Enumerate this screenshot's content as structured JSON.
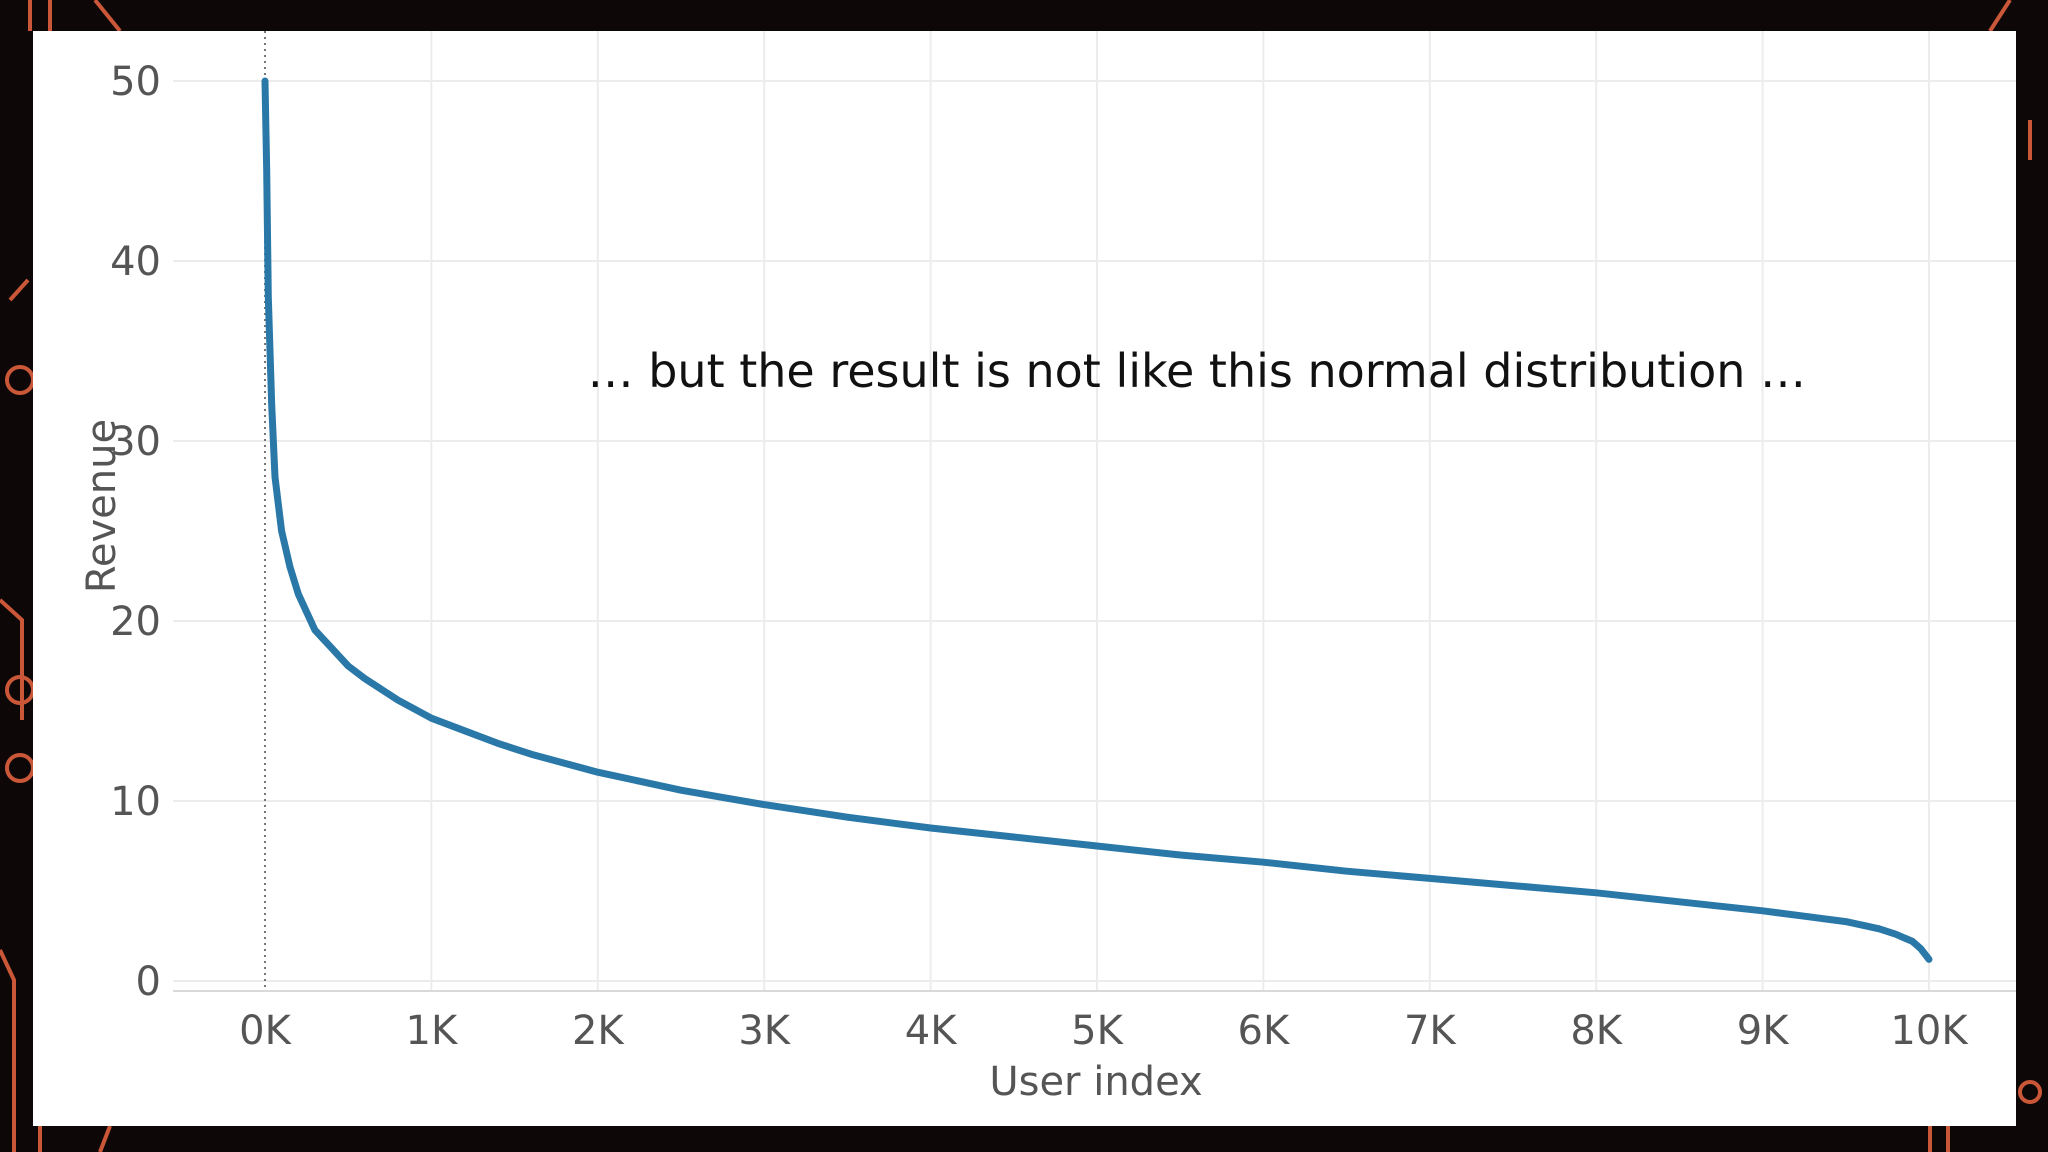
{
  "slide": {
    "theme_colors": {
      "background": "#0d0807",
      "circuit": "#e0603f",
      "panel": "#ffffff"
    }
  },
  "chart_data": {
    "type": "line",
    "title": "",
    "xlabel": "User index",
    "ylabel": "Revenue",
    "xlim": [
      0,
      10000
    ],
    "ylim": [
      0,
      50
    ],
    "x_ticks": [
      {
        "value": 0,
        "label": "0K"
      },
      {
        "value": 1000,
        "label": "1K"
      },
      {
        "value": 2000,
        "label": "2K"
      },
      {
        "value": 3000,
        "label": "3K"
      },
      {
        "value": 4000,
        "label": "4K"
      },
      {
        "value": 5000,
        "label": "5K"
      },
      {
        "value": 6000,
        "label": "6K"
      },
      {
        "value": 7000,
        "label": "7K"
      },
      {
        "value": 8000,
        "label": "8K"
      },
      {
        "value": 9000,
        "label": "9K"
      },
      {
        "value": 10000,
        "label": "10K"
      }
    ],
    "y_ticks": [
      {
        "value": 0,
        "label": "0"
      },
      {
        "value": 10,
        "label": "10"
      },
      {
        "value": 20,
        "label": "20"
      },
      {
        "value": 30,
        "label": "30"
      },
      {
        "value": 40,
        "label": "40"
      },
      {
        "value": 50,
        "label": "50"
      }
    ],
    "grid": true,
    "line_color": "#2a78a8",
    "series": [
      {
        "x": [
          0,
          10,
          20,
          40,
          60,
          100,
          150,
          200,
          250,
          300,
          350,
          400,
          450,
          500,
          600,
          700,
          800,
          900,
          1000,
          1200,
          1400,
          1600,
          1800,
          2000,
          2250,
          2500,
          2750,
          3000,
          3500,
          4000,
          4500,
          5000,
          5500,
          6000,
          6500,
          7000,
          7500,
          8000,
          8500,
          9000,
          9250,
          9500,
          9700,
          9800,
          9900,
          9950,
          10000
        ],
        "y": [
          50,
          45,
          38,
          32,
          28,
          25,
          23,
          21.5,
          20.5,
          19.5,
          19,
          18.5,
          18,
          17.5,
          16.8,
          16.2,
          15.6,
          15.1,
          14.6,
          13.9,
          13.2,
          12.6,
          12.1,
          11.6,
          11.1,
          10.6,
          10.2,
          9.8,
          9.1,
          8.5,
          8.0,
          7.5,
          7.0,
          6.6,
          6.1,
          5.7,
          5.3,
          4.9,
          4.4,
          3.9,
          3.6,
          3.3,
          2.9,
          2.6,
          2.2,
          1.8,
          1.2
        ]
      }
    ],
    "annotations": [
      {
        "text": "… but the result is not like this normal distribution …",
        "x": 5600,
        "y": 33
      }
    ]
  }
}
